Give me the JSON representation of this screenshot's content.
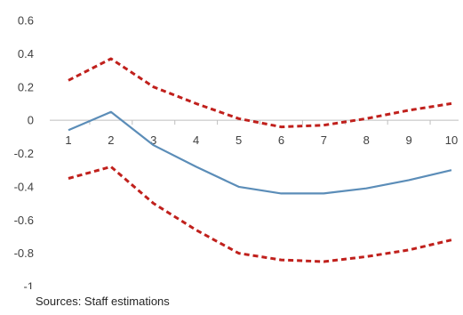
{
  "chart_data": {
    "type": "line",
    "x": [
      1,
      2,
      3,
      4,
      5,
      6,
      7,
      8,
      9,
      10
    ],
    "series": [
      {
        "style": "solid",
        "color": "#5b8db8",
        "values": [
          -0.06,
          0.05,
          -0.15,
          -0.28,
          -0.4,
          -0.44,
          -0.44,
          -0.41,
          -0.36,
          -0.3
        ]
      },
      {
        "style": "dashed",
        "color": "#c0201c",
        "values": [
          0.24,
          0.37,
          0.2,
          0.1,
          0.01,
          -0.04,
          -0.03,
          0.01,
          0.06,
          0.1
        ]
      },
      {
        "style": "dashed",
        "color": "#c0201c",
        "values": [
          -0.35,
          -0.28,
          -0.5,
          -0.66,
          -0.8,
          -0.84,
          -0.85,
          -0.82,
          -0.78,
          -0.72
        ]
      }
    ],
    "ylim": [
      -1,
      0.6
    ],
    "yticks": [
      "0.6",
      "0.4",
      "0.2",
      "0",
      "-0.2",
      "-0.4",
      "-0.6",
      "-0.8",
      "-1"
    ],
    "ytick_values": [
      0.6,
      0.4,
      0.2,
      0,
      -0.2,
      -0.4,
      -0.6,
      -0.8,
      -1
    ],
    "xticks": [
      "1",
      "2",
      "3",
      "4",
      "5",
      "6",
      "7",
      "8",
      "9",
      "10"
    ],
    "x_axis_at": 0,
    "grid": false,
    "legend": "none",
    "axis_color": "#bfbfbf",
    "source": "Sources: Staff estimations"
  }
}
